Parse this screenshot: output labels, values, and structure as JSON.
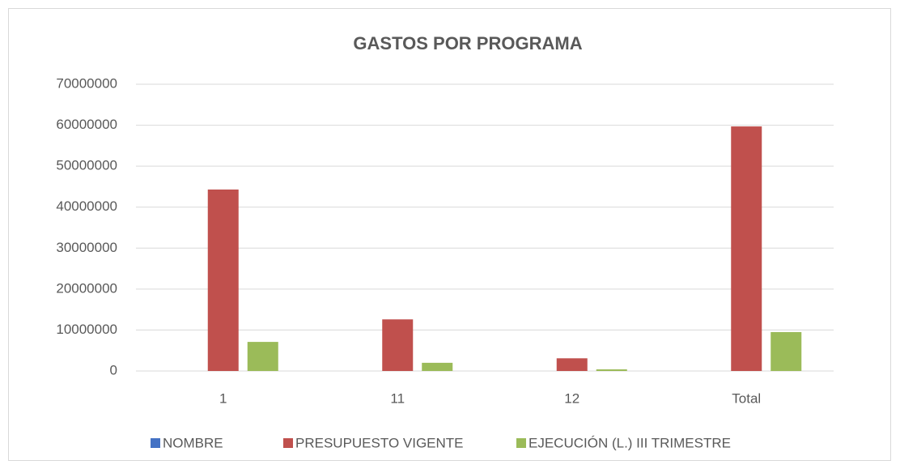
{
  "chart_data": {
    "type": "bar",
    "title": "GASTOS POR PROGRAMA",
    "categories": [
      "1",
      "11",
      "12",
      "Total"
    ],
    "series": [
      {
        "name": "NOMBRE",
        "color": "#4472c4",
        "values": [
          0,
          0,
          0,
          0
        ]
      },
      {
        "name": "PRESUPUESTO VIGENTE",
        "color": "#c0504d",
        "values": [
          44300000,
          12600000,
          3100000,
          59700000
        ]
      },
      {
        "name": "EJECUCIÓN (L.) III TRIMESTRE",
        "color": "#9bbb59",
        "values": [
          7100000,
          2000000,
          400000,
          9500000
        ]
      }
    ],
    "ylim": [
      0,
      70000000
    ],
    "yticks": [
      0,
      10000000,
      20000000,
      30000000,
      40000000,
      50000000,
      60000000,
      70000000
    ],
    "grid": true,
    "legend": "bottom"
  }
}
